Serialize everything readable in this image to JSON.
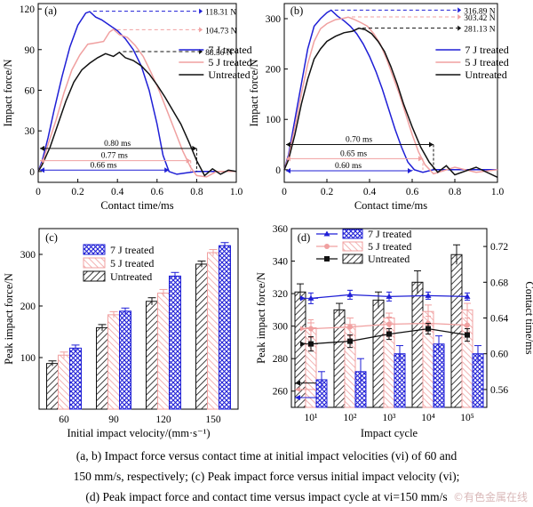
{
  "chart_data": [
    {
      "panel": "(a)",
      "type": "line",
      "xlabel": "Contact time/ms",
      "ylabel": "Impact force/N",
      "xlim": [
        0,
        1.0
      ],
      "ylim": [
        -8,
        124
      ],
      "xticks": [
        0,
        0.2,
        0.4,
        0.6,
        0.8,
        1.0
      ],
      "xtick_labels": [
        "0",
        "0.2",
        "0.4",
        "0.6",
        "0.8",
        "1.0"
      ],
      "yticks": [
        0,
        30,
        60,
        90,
        120
      ],
      "ytick_labels": [
        "0",
        "30",
        "60",
        "90",
        "120"
      ],
      "legend_position": "right",
      "series": [
        {
          "name": "7 J treated",
          "color": "#1f1fd6",
          "peak_label": "118.31 N",
          "peak": 118.31,
          "peak_x": 0.26,
          "x": [
            0,
            0.02,
            0.05,
            0.08,
            0.12,
            0.16,
            0.2,
            0.24,
            0.26,
            0.29,
            0.32,
            0.36,
            0.4,
            0.44,
            0.48,
            0.52,
            0.56,
            0.6,
            0.63,
            0.66,
            0.7,
            0.75,
            0.8,
            0.85,
            0.9,
            0.95,
            1.0
          ],
          "y": [
            0,
            8,
            25,
            45,
            70,
            92,
            108,
            117,
            118,
            114,
            112,
            108,
            104,
            98,
            90,
            78,
            60,
            35,
            12,
            0,
            -2,
            -1,
            0,
            0,
            0,
            0,
            0
          ]
        },
        {
          "name": "5 J treated",
          "color": "#f0a0a0",
          "peak_label": "104.73 N",
          "peak": 104.73,
          "peak_x": 0.38,
          "x": [
            0,
            0.02,
            0.05,
            0.09,
            0.13,
            0.17,
            0.21,
            0.25,
            0.29,
            0.33,
            0.36,
            0.38,
            0.41,
            0.45,
            0.49,
            0.53,
            0.57,
            0.61,
            0.65,
            0.69,
            0.73,
            0.77,
            0.8,
            0.85,
            0.9,
            0.95,
            1.0
          ],
          "y": [
            0,
            6,
            20,
            38,
            58,
            75,
            86,
            94,
            95,
            96,
            103,
            105,
            101,
            99,
            93,
            85,
            73,
            60,
            45,
            30,
            15,
            3,
            -3,
            -4,
            0,
            0,
            0
          ]
        },
        {
          "name": "Untreated",
          "color": "#111111",
          "peak_label": "88.56 N",
          "peak": 88.56,
          "peak_x": 0.41,
          "x": [
            0,
            0.02,
            0.06,
            0.1,
            0.14,
            0.18,
            0.22,
            0.26,
            0.3,
            0.34,
            0.38,
            0.41,
            0.44,
            0.48,
            0.52,
            0.56,
            0.6,
            0.64,
            0.68,
            0.72,
            0.76,
            0.8,
            0.84,
            0.88,
            0.92,
            0.96,
            1.0
          ],
          "y": [
            0,
            5,
            18,
            35,
            52,
            66,
            75,
            80,
            84,
            87,
            85,
            88,
            84,
            82,
            78,
            72,
            64,
            55,
            45,
            35,
            22,
            8,
            -3,
            2,
            -2,
            1,
            0
          ]
        }
      ],
      "contact_time_labels": [
        {
          "label": "0.80 ms",
          "value": 0.8,
          "y": 17
        },
        {
          "label": "0.77 ms",
          "value": 0.77,
          "y": 8
        },
        {
          "label": "0.66 ms",
          "value": 0.66,
          "y": 1
        }
      ]
    },
    {
      "panel": "(b)",
      "type": "line",
      "xlabel": "Contact time/ms",
      "ylabel": "Impact force/N",
      "xlim": [
        0,
        1.0
      ],
      "ylim": [
        -25,
        330
      ],
      "xticks": [
        0,
        0.2,
        0.4,
        0.6,
        0.8,
        1.0
      ],
      "xtick_labels": [
        "0",
        "0.2",
        "0.4",
        "0.6",
        "0.8",
        "1.0"
      ],
      "yticks": [
        0,
        100,
        200,
        300
      ],
      "ytick_labels": [
        "0",
        "100",
        "200",
        "300"
      ],
      "legend_position": "right",
      "series": [
        {
          "name": "7 J treated",
          "color": "#1f1fd6",
          "peak_label": "316.89 N",
          "peak": 316.89,
          "peak_x": 0.22,
          "x": [
            0,
            0.02,
            0.05,
            0.08,
            0.11,
            0.14,
            0.17,
            0.2,
            0.22,
            0.25,
            0.28,
            0.31,
            0.34,
            0.37,
            0.4,
            0.43,
            0.46,
            0.49,
            0.52,
            0.55,
            0.58,
            0.61,
            0.65,
            0.7,
            0.8,
            0.9,
            1.0
          ],
          "y": [
            0,
            30,
            100,
            170,
            240,
            285,
            300,
            312,
            317,
            305,
            296,
            285,
            270,
            250,
            225,
            195,
            160,
            120,
            80,
            45,
            15,
            0,
            -5,
            0,
            0,
            0,
            0
          ]
        },
        {
          "name": "5 J treated",
          "color": "#f0a0a0",
          "peak_label": "303.42 N",
          "peak": 303.42,
          "peak_x": 0.3,
          "x": [
            0,
            0.02,
            0.05,
            0.08,
            0.11,
            0.14,
            0.17,
            0.2,
            0.24,
            0.27,
            0.3,
            0.33,
            0.36,
            0.39,
            0.42,
            0.45,
            0.48,
            0.51,
            0.54,
            0.57,
            0.6,
            0.63,
            0.66,
            0.7,
            0.8,
            0.9,
            1.0
          ],
          "y": [
            0,
            25,
            85,
            150,
            210,
            255,
            280,
            290,
            298,
            300,
            303,
            298,
            292,
            285,
            270,
            250,
            220,
            185,
            150,
            110,
            70,
            35,
            10,
            -8,
            5,
            -5,
            0
          ]
        },
        {
          "name": "Untreated",
          "color": "#111111",
          "peak_label": "281.13 N",
          "peak": 281.13,
          "peak_x": 0.35,
          "x": [
            0,
            0.02,
            0.05,
            0.08,
            0.11,
            0.14,
            0.17,
            0.2,
            0.24,
            0.28,
            0.32,
            0.35,
            0.38,
            0.41,
            0.44,
            0.47,
            0.5,
            0.53,
            0.56,
            0.6,
            0.64,
            0.68,
            0.72,
            0.76,
            0.8,
            0.9,
            1.0
          ],
          "y": [
            0,
            20,
            70,
            130,
            180,
            220,
            240,
            255,
            265,
            272,
            275,
            281,
            278,
            270,
            255,
            235,
            205,
            170,
            130,
            85,
            45,
            15,
            -5,
            8,
            -10,
            5,
            -15
          ]
        }
      ],
      "contact_time_labels": [
        {
          "label": "0.70 ms",
          "value": 0.7,
          "y": 50
        },
        {
          "label": "0.65 ms",
          "value": 0.65,
          "y": 22
        },
        {
          "label": "0.60 ms",
          "value": 0.6,
          "y": -2
        }
      ]
    },
    {
      "panel": "(c)",
      "type": "bar",
      "xlabel": "Initial impact velocity/(mm·s⁻¹)",
      "ylabel": "Peak impact force/N",
      "categories": [
        "60",
        "90",
        "120",
        "150"
      ],
      "ylim": [
        0,
        350
      ],
      "yticks": [
        100,
        200,
        300
      ],
      "ytick_labels": [
        "100",
        "200",
        "300"
      ],
      "legend_position": "top-left",
      "series": [
        {
          "name": "Untreated",
          "color": "#111111",
          "values": [
            88.56,
            158,
            209,
            281.13
          ],
          "errors": [
            5,
            6,
            7,
            6
          ]
        },
        {
          "name": "5 J treated",
          "color": "#f0a0a0",
          "values": [
            104.73,
            183,
            225,
            303.42
          ],
          "errors": [
            6,
            6,
            7,
            6
          ]
        },
        {
          "name": "7 J treated",
          "color": "#1f1fd6",
          "values": [
            118.31,
            190,
            258,
            316.89
          ],
          "errors": [
            6,
            6,
            7,
            6
          ]
        }
      ]
    },
    {
      "panel": "(d)",
      "type": "bar",
      "xlabel": "Impact cycle",
      "ylabel": "Peak impact force/N",
      "ylabel_right": "Contact time/ms",
      "categories": [
        "10¹",
        "10²",
        "10³",
        "10⁴",
        "10⁵"
      ],
      "ylim": [
        250,
        360
      ],
      "yticks": [
        260,
        280,
        300,
        320,
        340,
        360
      ],
      "ytick_labels": [
        "260",
        "280",
        "300",
        "320",
        "340",
        "360"
      ],
      "y2lim": [
        0.54,
        0.74
      ],
      "y2ticks": [
        0.56,
        0.6,
        0.64,
        0.68,
        0.72
      ],
      "y2tick_labels": [
        "0.56",
        "0.60",
        "0.64",
        "0.68",
        "0.72"
      ],
      "legend_position": "top-left",
      "bar_series": [
        {
          "name": "Untreated",
          "color": "#111111",
          "values": [
            321,
            310,
            316,
            327,
            344
          ],
          "errors": [
            5,
            4,
            5,
            7,
            6
          ]
        },
        {
          "name": "5 J treated",
          "color": "#f0a0a0",
          "values": [
            299,
            301,
            305,
            309,
            310
          ],
          "errors": [
            3,
            4,
            3,
            4,
            4
          ]
        },
        {
          "name": "7 J treated",
          "color": "#1f1fd6",
          "values": [
            267,
            272,
            283,
            289,
            283
          ],
          "errors": [
            5,
            8,
            5,
            5,
            5
          ]
        }
      ],
      "line_series": [
        {
          "name": "7 J treated",
          "color": "#1f1fd6",
          "values": [
            0.662,
            0.666,
            0.664,
            0.665,
            0.664
          ],
          "errors": [
            0.006,
            0.005,
            0.005,
            0.004,
            0.004
          ]
        },
        {
          "name": "5 J treated",
          "color": "#f0a0a0",
          "values": [
            0.628,
            0.63,
            0.633,
            0.634,
            0.632
          ],
          "errors": [
            0.01,
            0.01,
            0.008,
            0.008,
            0.008
          ]
        },
        {
          "name": "Untreated",
          "color": "#111111",
          "values": [
            0.611,
            0.614,
            0.622,
            0.628,
            0.621
          ],
          "errors": [
            0.008,
            0.007,
            0.006,
            0.006,
            0.007
          ]
        }
      ]
    }
  ],
  "caption": {
    "line1": "(a, b) Impact force versus contact time at initial impact velocities (vi) of 60 and",
    "line2": "150 mm/s, respectively; (c) Peak impact force versus initial impact velocity (vi);",
    "line3": "(d) Peak impact force and contact time versus  impact cycle at vi=150 mm/s"
  },
  "watermark": "©有色金属在线"
}
